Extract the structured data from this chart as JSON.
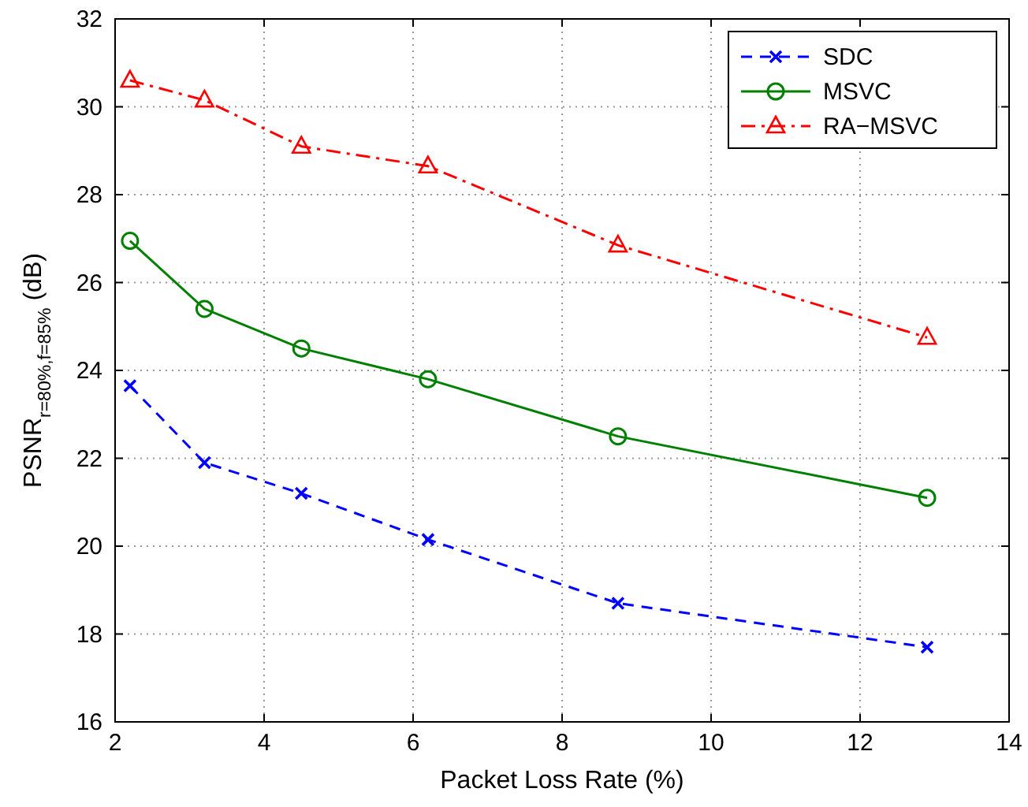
{
  "chart_data": {
    "type": "line",
    "xlabel": "Packet Loss Rate (%)",
    "ylabel": "PSNR$_{r=80%,f=85%}$ (dB)",
    "x": [
      2.2,
      3.2,
      4.5,
      6.2,
      8.75,
      12.9
    ],
    "series": [
      {
        "name": "SDC",
        "color": "#0000ff",
        "values": [
          23.65,
          21.9,
          21.2,
          20.15,
          18.7,
          17.7
        ],
        "marker": "cross",
        "line_style": "dashed"
      },
      {
        "name": "MSVC",
        "color": "#008000",
        "values": [
          26.95,
          25.4,
          24.5,
          23.8,
          22.5,
          21.1
        ],
        "marker": "circle",
        "line_style": "solid"
      },
      {
        "name": "RA−MSVC",
        "color": "#ff0000",
        "values": [
          30.6,
          30.15,
          29.1,
          28.65,
          26.85,
          24.75
        ],
        "marker": "triangle",
        "line_style": "dashdot"
      }
    ],
    "xlim": [
      2,
      14
    ],
    "xticks": [
      2,
      4,
      6,
      8,
      10,
      12,
      14
    ],
    "ylim": [
      16,
      32
    ],
    "yticks": [
      16,
      18,
      20,
      22,
      24,
      26,
      28,
      30,
      32
    ],
    "grid": true,
    "legend": "top right"
  }
}
